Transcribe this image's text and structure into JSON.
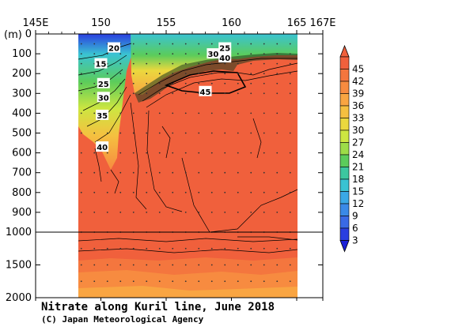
{
  "chart_data": {
    "type": "heatmap",
    "title": "Nitrate along Kuril line, June 2018",
    "subtitle": "(C) Japan Meteorological Agency",
    "x_ticks": [
      "145E",
      "150",
      "155",
      "160",
      "165",
      "167E"
    ],
    "x_tick_values": [
      145,
      150,
      155,
      160,
      165,
      167
    ],
    "xlim": [
      145,
      167
    ],
    "y_unit": "(m)",
    "y_ticks_upper": [
      0,
      100,
      200,
      300,
      400,
      500,
      600,
      700,
      800,
      900,
      1000
    ],
    "y_ticks_lower": [
      1500,
      2000
    ],
    "y_tick_labels_upper": [
      "0",
      "100",
      "200",
      "300",
      "400",
      "500",
      "600",
      "700",
      "800",
      "900",
      "1000"
    ],
    "y_tick_labels_lower": [
      "1500",
      "2000"
    ],
    "data_x_range": [
      148.5,
      165
    ],
    "contour_labels": [
      {
        "text": "20",
        "lon": 151.0,
        "depth": 70
      },
      {
        "text": "15",
        "lon": 150.0,
        "depth": 150
      },
      {
        "text": "25",
        "lon": 150.2,
        "depth": 250
      },
      {
        "text": "30",
        "lon": 150.2,
        "depth": 320
      },
      {
        "text": "35",
        "lon": 150.1,
        "depth": 410
      },
      {
        "text": "40",
        "lon": 150.1,
        "depth": 570
      },
      {
        "text": "25",
        "lon": 159.5,
        "depth": 70
      },
      {
        "text": "30",
        "lon": 158.6,
        "depth": 100
      },
      {
        "text": "40",
        "lon": 159.5,
        "depth": 120
      },
      {
        "text": "45",
        "lon": 158.0,
        "depth": 290
      }
    ],
    "colorbar": {
      "labels": [
        "45",
        "42",
        "39",
        "36",
        "33",
        "30",
        "27",
        "24",
        "21",
        "18",
        "15",
        "12",
        "9",
        "6",
        "3"
      ],
      "colors": [
        "#f0603c",
        "#f4763e",
        "#f78b40",
        "#f9a542",
        "#f5c040",
        "#ebd83e",
        "#cde641",
        "#9ddc48",
        "#5bcc5b",
        "#3cc7a0",
        "#3ac3d2",
        "#3aa8e6",
        "#3a8ae8",
        "#3a6ae6",
        "#2a3ee0"
      ]
    }
  }
}
